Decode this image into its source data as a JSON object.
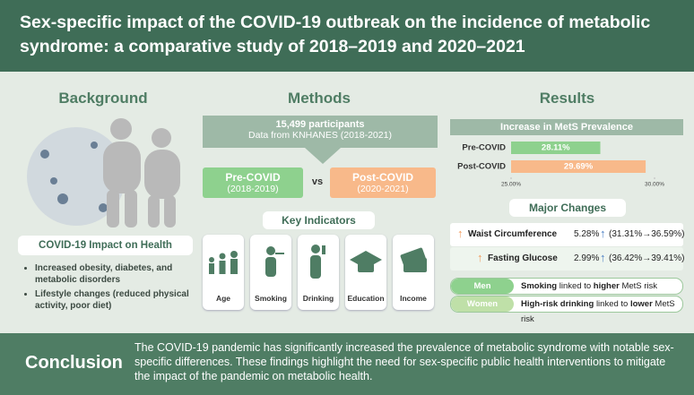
{
  "header": {
    "title": "Sex-specific impact of the COVID-19 outbreak on the incidence of metabolic syndrome: a comparative study of 2018–2019 and 2020–2021"
  },
  "background": {
    "heading": "Background",
    "box_title": "COVID-19 Impact on Health",
    "bullets": [
      "Increased obesity, diabetes, and metabolic disorders",
      "Lifestyle changes (reduced physical activity, poor diet)"
    ]
  },
  "methods": {
    "heading": "Methods",
    "participants": "15,499 participants",
    "source": "Data from KNHANES (2018-2021)",
    "pre": {
      "label": "Pre-COVID",
      "years": "(2018-2019)"
    },
    "vs": "vs",
    "post": {
      "label": "Post-COVID",
      "years": "(2020-2021)"
    },
    "indicators_title": "Key Indicators",
    "indicators": [
      "Age",
      "Smoking",
      "Drinking",
      "Education",
      "Income"
    ]
  },
  "results": {
    "heading": "Results",
    "chart_data": {
      "type": "bar",
      "title": "Increase in MetS Prevalence",
      "categories": [
        "Pre-COVID",
        "Post-COVID"
      ],
      "values": [
        28.11,
        29.69
      ],
      "value_labels": [
        "28.11%",
        "29.69%"
      ],
      "colors": [
        "#8ed18e",
        "#f8b98a"
      ],
      "xlim": [
        25,
        30
      ],
      "xticks": [
        {
          "value": 25,
          "label": "25.00%"
        },
        {
          "value": 30,
          "label": "30.00%"
        }
      ]
    },
    "changes_title": "Major Changes",
    "changes": [
      {
        "name": "Waist Circumference",
        "change": "5.28%",
        "range": "(31.31%→36.59%)"
      },
      {
        "name": "Fasting Glucose",
        "change": "2.99%",
        "range": "(36.42%→39.41%)"
      }
    ],
    "sex": [
      {
        "group": "Men",
        "parts": [
          "Smoking",
          "linked to",
          "higher",
          "MetS risk"
        ]
      },
      {
        "group": "Women",
        "parts": [
          "High-risk drinking",
          "linked to",
          "lower",
          "MetS risk"
        ]
      }
    ]
  },
  "conclusion": {
    "heading": "Conclusion",
    "text": "The COVID-19 pandemic has significantly increased the prevalence of metabolic syndrome with notable sex-specific differences. These findings highlight the need for sex-specific public health interventions to mitigate the impact of the pandemic on metabolic health."
  }
}
